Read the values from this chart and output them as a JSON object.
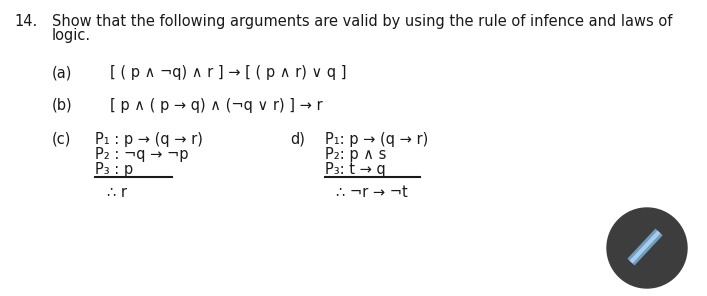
{
  "bg_color": "#ffffff",
  "text_color": "#1a1a1a",
  "number": "14.",
  "title_line1": "Show that the following arguments are valid by using the rule of infence and laws of",
  "title_line2": "logic.",
  "a_label": "(a)",
  "a_text": "[ ( p ∧ ¬q) ∧ r ] → [ ( p ∧ r) ∨ q ]",
  "b_label": "(b)",
  "b_text": "[ p ∧ ( p → q) ∧ (¬q ∨ r) ] → r",
  "c_label": "(c)",
  "c_p1": "P₁ : p → (q → r)",
  "c_p2": "P₂ : ¬q → ¬p",
  "c_p3": "P₃ : p",
  "c_conclusion": "∴ r",
  "d_label": "d)",
  "d_p1": "P₁: p → (q → r)",
  "d_p2": "P₂: p ∧ s",
  "d_p3": "P₃: t → q",
  "d_conclusion": "∴ ¬r → ¬t",
  "circle_color": "#3d3d3d",
  "pencil_body_color": "#8ab4d4",
  "pencil_tip_color": "#6a94b4",
  "font_size": 10.5,
  "small_font_size": 10.5
}
